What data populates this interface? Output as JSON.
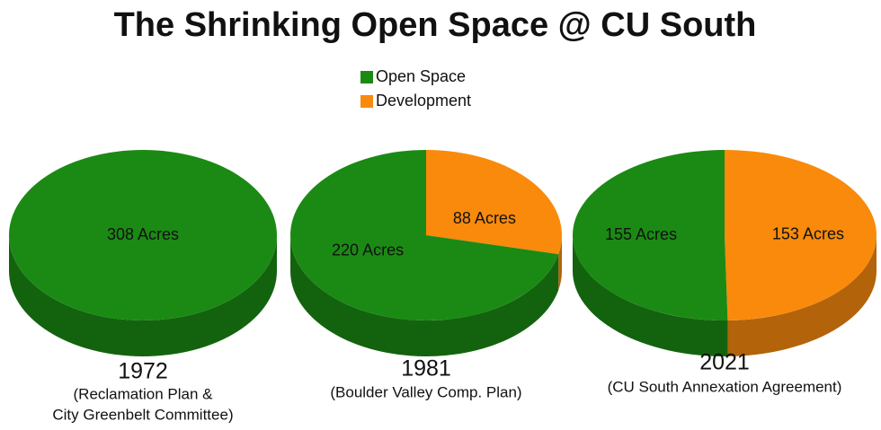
{
  "title": "The Shrinking Open Space @ CU South",
  "chart_data": [
    {
      "type": "pie",
      "title": "1972",
      "subtitle": [
        "(Reclamation Plan &",
        "City Greenbelt Committee)"
      ],
      "categories": [
        "Open Space"
      ],
      "values": [
        308
      ],
      "value_labels": [
        "308 Acres"
      ],
      "colors": [
        "#1b8a14"
      ]
    },
    {
      "type": "pie",
      "title": "1981",
      "subtitle": [
        "(Boulder Valley Comp. Plan)"
      ],
      "categories": [
        "Development",
        "Open Space"
      ],
      "values": [
        88,
        220
      ],
      "value_labels": [
        "88 Acres",
        "220 Acres"
      ],
      "colors": [
        "#f98a0c",
        "#1b8a14"
      ]
    },
    {
      "type": "pie",
      "title": "2021",
      "subtitle": [
        "(CU South Annexation Agreement)"
      ],
      "categories": [
        "Development",
        "Open Space"
      ],
      "values": [
        153,
        155
      ],
      "value_labels": [
        "153 Acres",
        "155 Acres"
      ],
      "colors": [
        "#f98a0c",
        "#1b8a14"
      ]
    }
  ]
}
